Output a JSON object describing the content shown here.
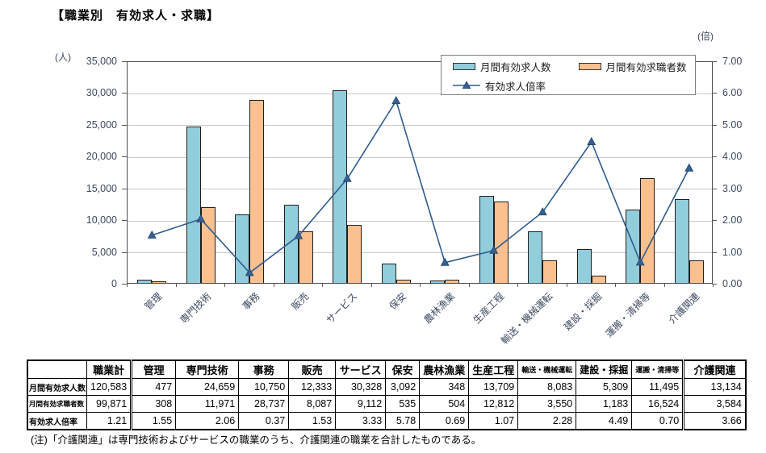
{
  "title": "【職業別　有効求人・求職】",
  "note": "(注)「介護関連」は専門技術およびサービスの職業のうち、介護関連の職業を合計したものである。",
  "chart_data": {
    "type": "bar",
    "subtype": "bar+line-combo",
    "unit_left": "(人)",
    "unit_right": "(倍)",
    "categories": [
      "管理",
      "専門技術",
      "事務",
      "販売",
      "サービス",
      "保安",
      "農林漁業",
      "生産工程",
      "輸送・機械運転",
      "建設・採掘",
      "運搬・清掃等",
      "介護関連"
    ],
    "series": [
      {
        "name": "月間有効求人数",
        "type": "bar",
        "axis": "left",
        "color": "#92CDDC",
        "values": [
          477,
          24659,
          10750,
          12333,
          30328,
          3092,
          348,
          13709,
          8083,
          5309,
          11495,
          13134
        ]
      },
      {
        "name": "月間有効求職者数",
        "type": "bar",
        "axis": "left",
        "color": "#FAC090",
        "values": [
          308,
          11971,
          28737,
          8087,
          9112,
          535,
          504,
          12812,
          3550,
          1183,
          16524,
          3584
        ]
      },
      {
        "name": "有効求人倍率",
        "type": "line",
        "axis": "right",
        "color": "#2E5B8E",
        "marker_color": "#376092",
        "values": [
          1.55,
          2.06,
          0.37,
          1.53,
          3.33,
          5.78,
          0.69,
          1.07,
          2.28,
          4.49,
          0.7,
          3.66
        ]
      }
    ],
    "y_left": {
      "min": 0,
      "max": 35000,
      "step": 5000
    },
    "y_right": {
      "min": 0,
      "max": 7,
      "step": 1
    },
    "grid": true,
    "legend_position": "top-right"
  },
  "table": {
    "corner": "",
    "col_headers": [
      "職業計",
      "管理",
      "専門技術",
      "事務",
      "販売",
      "サービス",
      "保安",
      "農林漁業",
      "生産工程",
      "輸送・機械運転",
      "建設・採掘",
      "運搬・清掃等",
      "介護関連"
    ],
    "rows": [
      {
        "label": "月間有効求人数",
        "values": [
          "120,583",
          "477",
          "24,659",
          "10,750",
          "12,333",
          "30,328",
          "3,092",
          "348",
          "13,709",
          "8,083",
          "5,309",
          "11,495",
          "13,134"
        ]
      },
      {
        "label": "月間有効求職者数",
        "values": [
          "99,871",
          "308",
          "11,971",
          "28,737",
          "8,087",
          "9,112",
          "535",
          "504",
          "12,812",
          "3,550",
          "1,183",
          "16,524",
          "3,584"
        ]
      },
      {
        "label": "有効求人倍率",
        "values": [
          "1.21",
          "1.55",
          "2.06",
          "0.37",
          "1.53",
          "3.33",
          "5.78",
          "0.69",
          "1.07",
          "2.28",
          "4.49",
          "0.70",
          "3.66"
        ]
      }
    ]
  }
}
